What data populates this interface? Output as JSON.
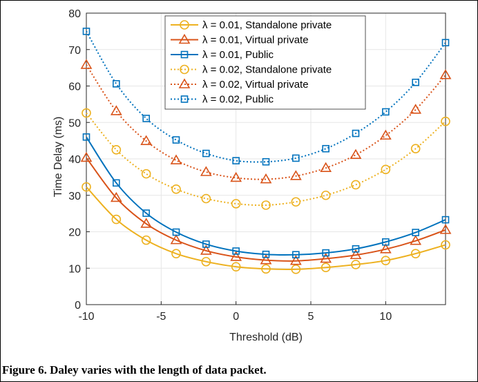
{
  "figure": {
    "caption": "Figure 6. Daley varies with the length of data packet."
  },
  "chart_data": {
    "type": "line",
    "xlabel": "Threshold (dB)",
    "ylabel": "Time Delay (ms)",
    "xlim": [
      -10,
      14
    ],
    "ylim": [
      0,
      80
    ],
    "xticks": [
      -10,
      -5,
      0,
      5,
      10
    ],
    "yticks": [
      0,
      10,
      20,
      30,
      40,
      50,
      60,
      70,
      80
    ],
    "grid": true,
    "legend_position": "top-center",
    "x": [
      -10,
      -8,
      -6,
      -4,
      -2,
      0,
      2,
      4,
      6,
      8,
      10,
      12,
      14
    ],
    "series": [
      {
        "name": "λ = 0.01, Standalone private",
        "color": "#EDB120",
        "marker": "circle",
        "dash": "solid",
        "values": [
          32.3,
          23.4,
          17.7,
          14.0,
          11.8,
          10.4,
          9.8,
          9.7,
          10.2,
          11.0,
          12.1,
          14.0,
          16.4
        ]
      },
      {
        "name": "λ = 0.01, Virtual private",
        "color": "#D95319",
        "marker": "triangle",
        "dash": "solid",
        "values": [
          40.3,
          29.3,
          22.2,
          17.7,
          14.8,
          13.1,
          12.2,
          12.0,
          12.6,
          13.6,
          15.2,
          17.5,
          20.5
        ]
      },
      {
        "name": "λ = 0.01, Public",
        "color": "#0072BD",
        "marker": "square",
        "dash": "solid",
        "values": [
          46.0,
          33.4,
          25.1,
          19.9,
          16.6,
          14.7,
          13.8,
          13.7,
          14.2,
          15.3,
          17.2,
          19.8,
          23.3
        ]
      },
      {
        "name": "λ = 0.02, Standalone private",
        "color": "#EDB120",
        "marker": "circle",
        "dash": "dotted",
        "values": [
          52.6,
          42.5,
          35.9,
          31.7,
          29.1,
          27.7,
          27.3,
          28.2,
          30.0,
          32.9,
          37.1,
          42.8,
          50.3
        ]
      },
      {
        "name": "λ = 0.02, Virtual private",
        "color": "#D95319",
        "marker": "triangle",
        "dash": "dotted",
        "values": [
          65.8,
          53.1,
          44.9,
          39.6,
          36.4,
          34.8,
          34.4,
          35.3,
          37.5,
          41.1,
          46.4,
          53.5,
          63.0
        ]
      },
      {
        "name": "λ = 0.02, Public",
        "color": "#0072BD",
        "marker": "square",
        "dash": "dotted",
        "values": [
          75.0,
          60.6,
          51.1,
          45.2,
          41.5,
          39.5,
          39.2,
          40.2,
          42.8,
          47.0,
          52.9,
          61.0,
          71.9
        ]
      }
    ]
  }
}
